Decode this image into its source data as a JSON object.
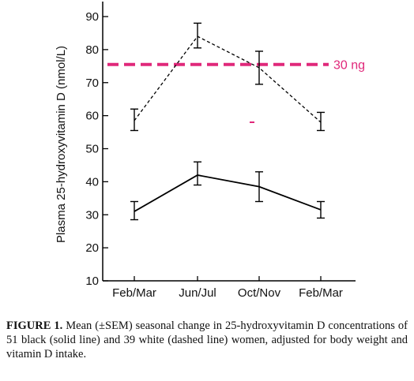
{
  "chart_data": {
    "type": "line",
    "ylabel": "Plasma 25-hydroxyvitamin D (nmol/L)",
    "xlabel": "",
    "ylim": [
      10,
      95
    ],
    "yticks": [
      10,
      20,
      30,
      40,
      50,
      60,
      70,
      80,
      90
    ],
    "categories": [
      "Feb/Mar",
      "Jun/Jul",
      "Oct/Nov",
      "Feb/Mar"
    ],
    "series": [
      {
        "style": "solid",
        "color": "#000000",
        "values": [
          31,
          42,
          38.5,
          31.5
        ],
        "err_low": [
          28.5,
          39,
          34,
          29
        ],
        "err_high": [
          34,
          46,
          43,
          34
        ]
      },
      {
        "style": "dashed",
        "color": "#000000",
        "values": [
          58.5,
          84,
          74.5,
          58
        ],
        "err_low": [
          55.5,
          80.5,
          69.5,
          55.5
        ],
        "err_high": [
          62,
          88,
          79.5,
          61
        ]
      }
    ],
    "reference_line": {
      "value": 75.5,
      "label": "30 ng",
      "color": "#e0287a"
    },
    "grid": false,
    "legend": "none"
  },
  "caption": {
    "label": "FIGURE 1.",
    "text": "Mean (±SEM) seasonal change in 25-hydroxyvitamin D concentrations of 51 black (solid line) and 39 white (dashed line) women, adjusted for body weight and vitamin D intake."
  }
}
